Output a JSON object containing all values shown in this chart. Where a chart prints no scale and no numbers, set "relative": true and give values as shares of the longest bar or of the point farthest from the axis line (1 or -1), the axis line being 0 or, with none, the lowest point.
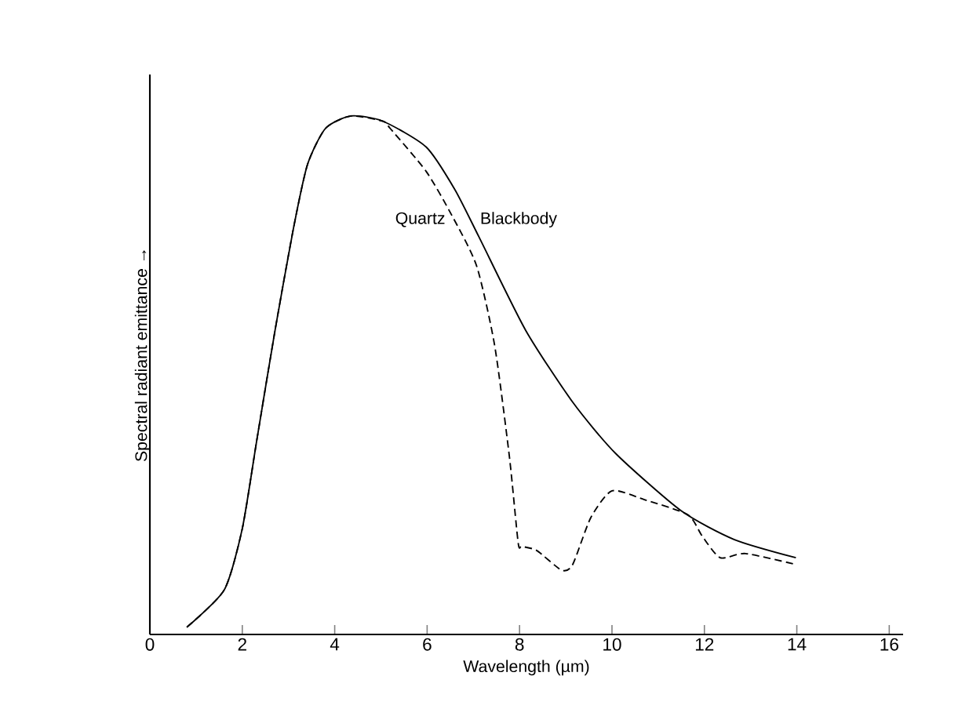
{
  "chart_data": {
    "type": "line",
    "xlabel": "Wavelength (µm)",
    "ylabel": "Spectral radiant emittance →",
    "relative": true,
    "xlim": [
      0,
      16.3
    ],
    "xticks": [
      0,
      2,
      4,
      6,
      8,
      10,
      12,
      14,
      16
    ],
    "tick_labels": "x",
    "grid": false,
    "legend": false,
    "marker": "none",
    "series": [
      {
        "name": "Blackbody",
        "color": "#000000",
        "line_style": "solid",
        "x": [
          0.8,
          1.61,
          2.0,
          2.32,
          2.71,
          3.1,
          3.41,
          3.8,
          4.35,
          5.04,
          5.98,
          6.6,
          7.12,
          8.13,
          9.15,
          10.08,
          11.49,
          12.65,
          13.98
        ],
        "values": [
          0.014,
          0.086,
          0.204,
          0.378,
          0.587,
          0.78,
          0.906,
          0.976,
          1.0,
          0.99,
          0.94,
          0.858,
          0.767,
          0.587,
          0.448,
          0.349,
          0.239,
          0.183,
          0.148
        ]
      },
      {
        "name": "Quartz",
        "color": "#000000",
        "line_style": "dashed",
        "x": [
          0.8,
          1.61,
          2.0,
          2.32,
          2.71,
          3.1,
          3.41,
          3.8,
          4.35,
          5.04,
          5.2,
          5.98,
          6.53,
          7.07,
          7.46,
          7.78,
          7.97,
          8.05,
          8.37,
          8.91,
          9.15,
          9.54,
          10.0,
          10.7,
          11.64,
          11.95,
          12.34,
          12.89,
          13.98
        ],
        "values": [
          0.014,
          0.086,
          0.204,
          0.378,
          0.587,
          0.78,
          0.906,
          0.976,
          1.0,
          0.99,
          0.976,
          0.893,
          0.809,
          0.711,
          0.558,
          0.343,
          0.177,
          0.17,
          0.162,
          0.124,
          0.135,
          0.225,
          0.277,
          0.26,
          0.231,
          0.19,
          0.148,
          0.156,
          0.135
        ]
      }
    ]
  }
}
